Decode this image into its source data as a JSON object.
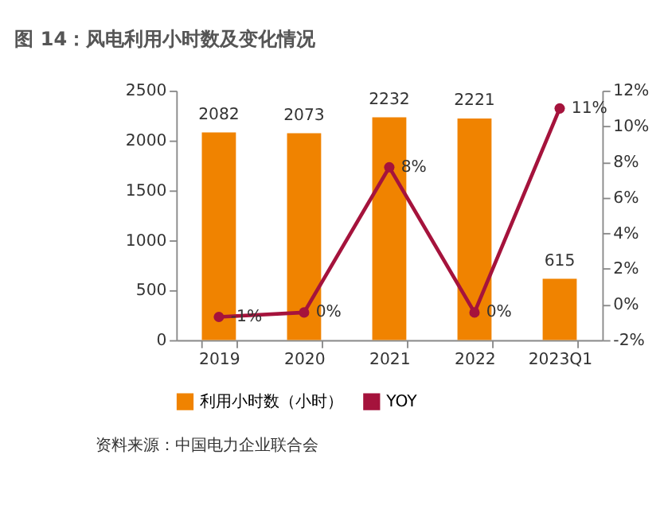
{
  "chart_data": {
    "type": "bar",
    "title": "图 14：风电利用小时数及变化情况",
    "categories": [
      "2019",
      "2020",
      "2021",
      "2022",
      "2023Q1"
    ],
    "series": [
      {
        "name": "利用小时数（小时）",
        "color": "#f08300",
        "values": [
          2082,
          2073,
          2232,
          2221,
          615
        ],
        "value_labels": [
          "2082",
          "2073",
          "2232",
          "2221",
          "615"
        ]
      },
      {
        "name": "YOY",
        "type": "line",
        "axis": "y2",
        "color": "#a5133c",
        "marker": "circle",
        "values": [
          -0.7,
          -0.45,
          7.7,
          -0.45,
          11.0
        ],
        "value_labels": [
          "-1%",
          "0%",
          "8%",
          "0%",
          "11%"
        ]
      }
    ],
    "ylim": [
      0,
      2500
    ],
    "yticks": [
      0,
      500,
      1000,
      1500,
      2000,
      2500
    ],
    "y2lim": [
      -2,
      12
    ],
    "y2ticks": [
      {
        "value": -2,
        "label": "-2%"
      },
      {
        "value": 0,
        "label": "0%"
      },
      {
        "value": 2,
        "label": "2%"
      },
      {
        "value": 4,
        "label": "4%"
      },
      {
        "value": 6,
        "label": "6%"
      },
      {
        "value": 8,
        "label": "8%"
      },
      {
        "value": 10,
        "label": "10%"
      },
      {
        "value": 12,
        "label": "12%"
      }
    ],
    "grid": false,
    "legend": "bottom",
    "annotations": [
      "资料来源：中国电力企业联合会"
    ]
  }
}
